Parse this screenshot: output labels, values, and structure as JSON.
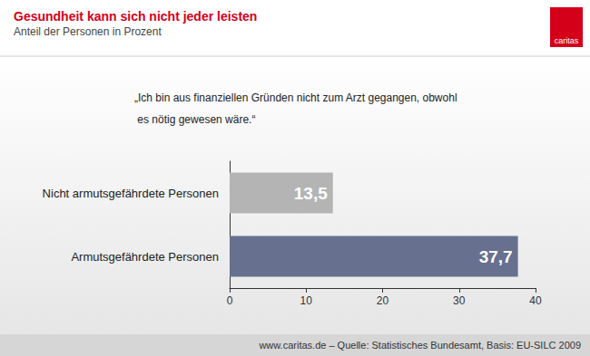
{
  "chart_data": {
    "type": "bar",
    "orientation": "horizontal",
    "title": "Gesundheit kann sich nicht jeder leisten",
    "subtitle": "Anteil der Personen in Prozent",
    "annotation": "„Ich bin aus finanziellen Gründen nicht zum Arzt gegangen, obwohl es nötig gewesen wäre.“",
    "source": "www.caritas.de – Quelle: Statistisches Bundesamt, Basis: EU-SILC 2009",
    "logo": "caritas",
    "categories": [
      "Nicht armutsgefährdete Personen",
      "Armutsgefährdete Personen"
    ],
    "values": [
      13.5,
      37.7
    ],
    "value_labels": [
      "13,5",
      "37,7"
    ],
    "colors": [
      "#b4b4b4",
      "#68708f"
    ],
    "xlim": [
      0,
      40
    ],
    "xticks": [
      0,
      10,
      20,
      30,
      40
    ],
    "data_labels": true,
    "grid": false
  }
}
